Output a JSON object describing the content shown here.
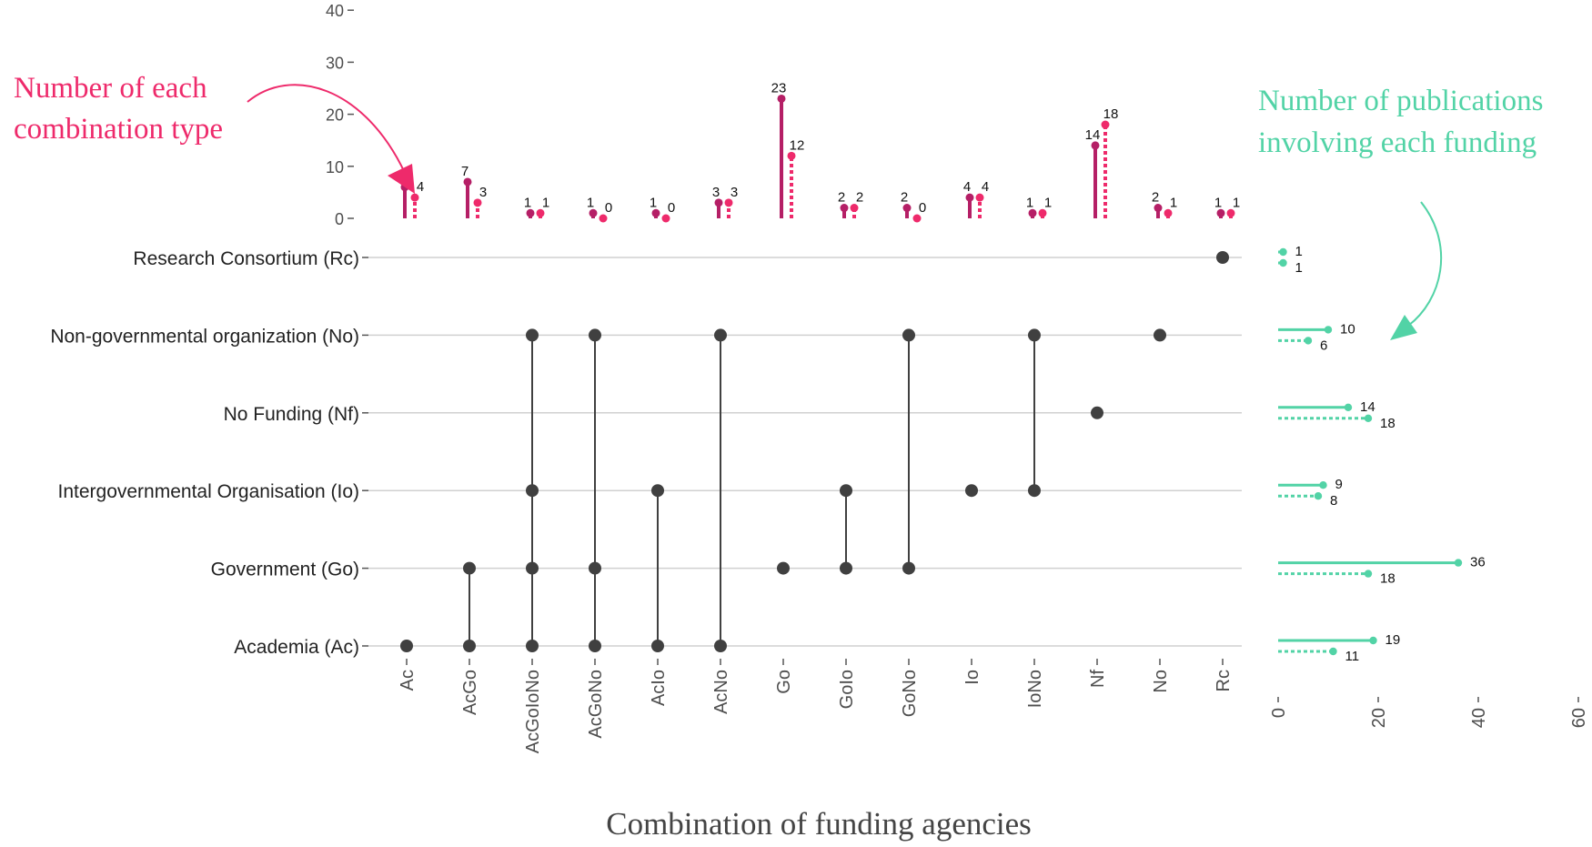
{
  "colors": {
    "pink_solid": "#b51f66",
    "pink_dotted": "#ee2a6b",
    "teal": "#52d3a6",
    "dot": "#404040",
    "grid": "#d0d0d0"
  },
  "annotations": {
    "left": [
      "Number of each",
      "combination type"
    ],
    "right": [
      "Number of publications",
      "involving each funding"
    ]
  },
  "chart_data": [
    {
      "type": "bar",
      "title": "Number of each combination type",
      "categories": [
        "Ac",
        "AcGo",
        "AcGoIoNo",
        "AcGoNo",
        "AcIo",
        "AcNo",
        "Go",
        "GoIo",
        "GoNo",
        "Io",
        "IoNo",
        "Nf",
        "No",
        "Rc"
      ],
      "series": [
        {
          "name": "solid",
          "style": "solid",
          "values": [
            6,
            7,
            1,
            1,
            1,
            3,
            23,
            2,
            2,
            4,
            1,
            14,
            2,
            1
          ]
        },
        {
          "name": "dotted",
          "style": "dotted",
          "values": [
            4,
            3,
            1,
            0,
            0,
            3,
            12,
            2,
            0,
            4,
            1,
            18,
            1,
            1
          ]
        }
      ],
      "ylim": [
        0,
        40
      ],
      "yticks": [
        "0",
        "10",
        "20",
        "30",
        "40"
      ],
      "xlabel": "Combination of funding agencies",
      "ylabel": ""
    },
    {
      "type": "matrix",
      "sets": [
        "Research Consortium (Rc)",
        "Non-governmental organization (No)",
        "No Funding (Nf)",
        "Intergovernmental Organisation (Io)",
        "Government (Go)",
        "Academia (Ac)"
      ],
      "combinations": [
        {
          "name": "Ac",
          "members": [
            5
          ]
        },
        {
          "name": "AcGo",
          "members": [
            4,
            5
          ]
        },
        {
          "name": "AcGoIoNo",
          "members": [
            1,
            3,
            4,
            5
          ]
        },
        {
          "name": "AcGoNo",
          "members": [
            1,
            4,
            5
          ]
        },
        {
          "name": "AcIo",
          "members": [
            3,
            5
          ]
        },
        {
          "name": "AcNo",
          "members": [
            1,
            5
          ]
        },
        {
          "name": "Go",
          "members": [
            4
          ]
        },
        {
          "name": "GoIo",
          "members": [
            3,
            4
          ]
        },
        {
          "name": "GoNo",
          "members": [
            1,
            4
          ]
        },
        {
          "name": "Io",
          "members": [
            3
          ]
        },
        {
          "name": "IoNo",
          "members": [
            1,
            3
          ]
        },
        {
          "name": "Nf",
          "members": [
            2
          ]
        },
        {
          "name": "No",
          "members": [
            1
          ]
        },
        {
          "name": "Rc",
          "members": [
            0
          ]
        }
      ]
    },
    {
      "type": "bar",
      "orientation": "horizontal",
      "title": "Number of publications involving each funding",
      "categories": [
        "Research Consortium (Rc)",
        "Non-governmental organization (No)",
        "No Funding (Nf)",
        "Intergovernmental Organisation (Io)",
        "Government (Go)",
        "Academia (Ac)"
      ],
      "series": [
        {
          "name": "solid",
          "style": "solid",
          "values": [
            1,
            10,
            14,
            9,
            36,
            19
          ]
        },
        {
          "name": "dotted",
          "style": "dotted",
          "values": [
            1,
            6,
            18,
            8,
            18,
            11
          ]
        }
      ],
      "xlim": [
        0,
        60
      ],
      "xticks": [
        "0",
        "20",
        "40",
        "60"
      ]
    }
  ]
}
